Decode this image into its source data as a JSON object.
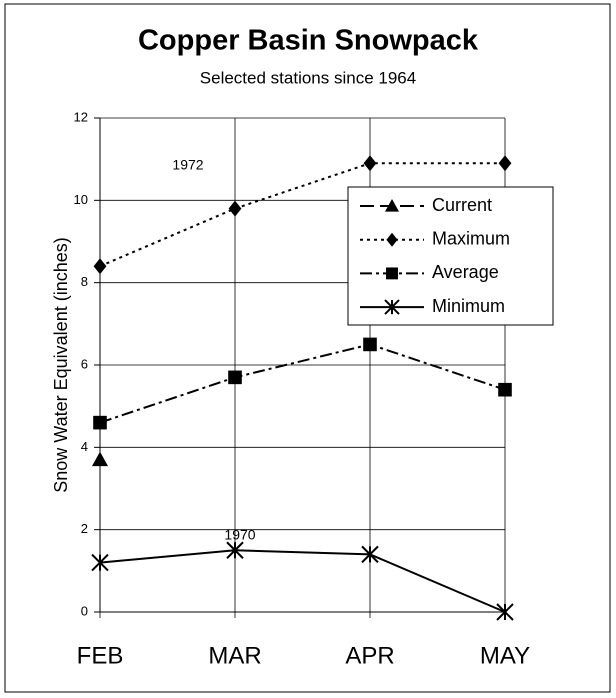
{
  "chart_data": {
    "type": "line",
    "title": "Copper Basin Snowpack",
    "subtitle": "Selected stations since 1964",
    "y_label": "Snow Water Equivalent (inches)",
    "categories": [
      "FEB",
      "MAR",
      "APR",
      "MAY"
    ],
    "series": [
      {
        "name": "Current",
        "color": "#000000",
        "dash": "dashed",
        "marker": "triangle",
        "values": [
          3.7,
          null,
          null,
          null
        ]
      },
      {
        "name": "Maximum",
        "color": "#000000",
        "dash": "dotted",
        "marker": "diamond",
        "values": [
          8.4,
          9.8,
          10.9,
          10.9
        ]
      },
      {
        "name": "Average",
        "color": "#000000",
        "dash": "dashdot",
        "marker": "square",
        "values": [
          4.6,
          5.7,
          6.5,
          5.4
        ]
      },
      {
        "name": "Minimum",
        "color": "#000000",
        "dash": "solid",
        "marker": "star",
        "values": [
          1.2,
          1.5,
          1.4,
          0
        ]
      }
    ],
    "annotations": [
      "1972",
      "1970"
    ],
    "ylim": [
      0,
      12
    ],
    "yticks": [
      0,
      2,
      4,
      6,
      8,
      10,
      12
    ],
    "grid": true,
    "legend": "upper right"
  }
}
